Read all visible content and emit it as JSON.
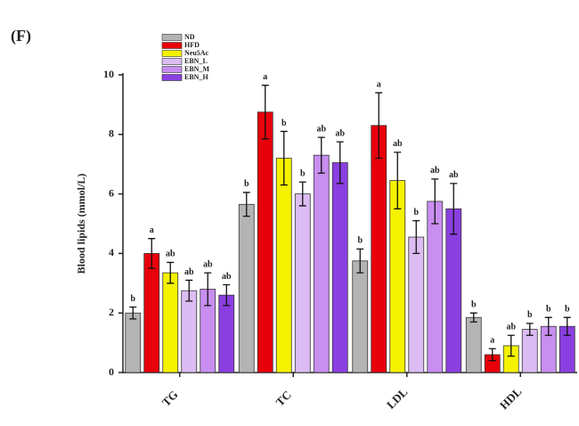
{
  "chart_data": {
    "type": "bar",
    "panel_label": "(F)",
    "y_label": "Blood lipids (mmol/L)",
    "categories": [
      "TG",
      "TC",
      "LDL",
      "HDL"
    ],
    "ylim": [
      0,
      10
    ],
    "yticks": [
      0,
      2,
      4,
      6,
      8,
      10
    ],
    "series": [
      {
        "name": "ND",
        "color": "#b4b4b4",
        "values": [
          2.0,
          5.65,
          3.75,
          1.85
        ],
        "errors": [
          0.2,
          0.4,
          0.4,
          0.15
        ],
        "letters": [
          "b",
          "b",
          "b",
          "b"
        ]
      },
      {
        "name": "HFD",
        "color": "#e8000b",
        "values": [
          4.0,
          8.75,
          8.3,
          0.6
        ],
        "errors": [
          0.5,
          0.9,
          1.1,
          0.2
        ],
        "letters": [
          "a",
          "a",
          "a",
          "a"
        ]
      },
      {
        "name": "Neu5Ac",
        "color": "#f5f200",
        "values": [
          3.35,
          7.2,
          6.45,
          0.9
        ],
        "errors": [
          0.35,
          0.9,
          0.95,
          0.35
        ],
        "letters": [
          "ab",
          "b",
          "ab",
          "ab"
        ]
      },
      {
        "name": "EBN_L",
        "color": "#dcbcf2",
        "values": [
          2.75,
          6.0,
          4.55,
          1.45
        ],
        "errors": [
          0.35,
          0.4,
          0.55,
          0.2
        ],
        "letters": [
          "ab",
          "b",
          "b",
          "b"
        ]
      },
      {
        "name": "EBN_M",
        "color": "#c88ef0",
        "values": [
          2.8,
          7.3,
          5.75,
          1.55
        ],
        "errors": [
          0.55,
          0.6,
          0.75,
          0.3
        ],
        "letters": [
          "ab",
          "ab",
          "ab",
          "b"
        ]
      },
      {
        "name": "EBN_H",
        "color": "#8b3fe0",
        "values": [
          2.6,
          7.05,
          5.5,
          1.55
        ],
        "errors": [
          0.35,
          0.7,
          0.85,
          0.3
        ],
        "letters": [
          "ab",
          "ab",
          "ab",
          "b"
        ]
      }
    ]
  }
}
